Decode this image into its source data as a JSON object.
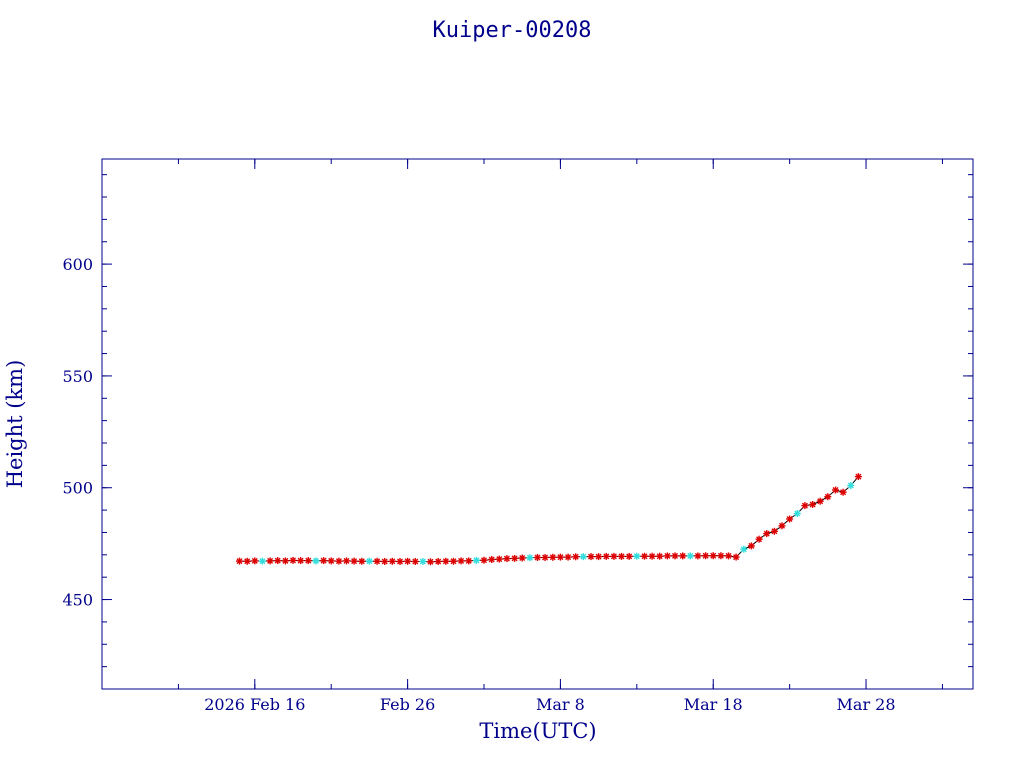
{
  "chart_data": {
    "type": "scatter",
    "title": "Kuiper-00208",
    "xlabel": "Time(UTC)",
    "ylabel": "Height (km)",
    "x_ticks": [
      "2026 Feb 16",
      "Feb 26",
      "Mar  8",
      "Mar 18",
      "Mar 28"
    ],
    "y_ticks": [
      "450",
      "500",
      "550",
      "600"
    ],
    "xlim": [
      "2026-02-06",
      "2026-04-04"
    ],
    "ylim": [
      410,
      647
    ],
    "x_tick_values": [
      "2026-02-16",
      "2026-02-26",
      "2026-03-08",
      "2026-03-18",
      "2026-03-28"
    ],
    "y_tick_values": [
      450,
      500,
      550,
      600
    ],
    "grid": false,
    "series": [
      {
        "marker": "asterisk",
        "line": true,
        "points": [
          [
            "2026-02-15",
            467.2
          ],
          [
            "2026-02-15T12:00",
            467.1
          ],
          [
            "2026-02-16",
            467.3
          ],
          [
            "2026-02-16T12:00",
            467.2
          ],
          [
            "2026-02-17",
            467.3
          ],
          [
            "2026-02-17T12:00",
            467.4
          ],
          [
            "2026-02-18",
            467.3
          ],
          [
            "2026-02-18T12:00",
            467.5
          ],
          [
            "2026-02-19",
            467.4
          ],
          [
            "2026-02-19T12:00",
            467.4
          ],
          [
            "2026-02-20",
            467.3
          ],
          [
            "2026-02-20T12:00",
            467.4
          ],
          [
            "2026-02-21",
            467.3
          ],
          [
            "2026-02-21T12:00",
            467.2
          ],
          [
            "2026-02-22",
            467.3
          ],
          [
            "2026-02-22T12:00",
            467.2
          ],
          [
            "2026-02-23",
            467.1
          ],
          [
            "2026-02-23T12:00",
            467.2
          ],
          [
            "2026-02-24",
            467.1
          ],
          [
            "2026-02-24T12:00",
            467.0
          ],
          [
            "2026-02-25",
            467.1
          ],
          [
            "2026-02-25T12:00",
            467.0
          ],
          [
            "2026-02-26",
            467.1
          ],
          [
            "2026-02-26T12:00",
            467.0
          ],
          [
            "2026-02-27",
            467.0
          ],
          [
            "2026-02-27T12:00",
            466.9
          ],
          [
            "2026-02-28",
            467.0
          ],
          [
            "2026-02-28T12:00",
            467.1
          ],
          [
            "2026-03-01",
            467.1
          ],
          [
            "2026-03-01T12:00",
            467.3
          ],
          [
            "2026-03-02",
            467.3
          ],
          [
            "2026-03-02T12:00",
            467.5
          ],
          [
            "2026-03-03",
            467.6
          ],
          [
            "2026-03-03T12:00",
            467.9
          ],
          [
            "2026-03-04",
            468.1
          ],
          [
            "2026-03-04T12:00",
            468.3
          ],
          [
            "2026-03-05",
            468.4
          ],
          [
            "2026-03-05T12:00",
            468.6
          ],
          [
            "2026-03-06",
            468.7
          ],
          [
            "2026-03-06T12:00",
            468.8
          ],
          [
            "2026-03-07",
            468.8
          ],
          [
            "2026-03-07T12:00",
            468.9
          ],
          [
            "2026-03-08",
            469.0
          ],
          [
            "2026-03-08T12:00",
            469.0
          ],
          [
            "2026-03-09",
            469.1
          ],
          [
            "2026-03-09T12:00",
            469.2
          ],
          [
            "2026-03-10",
            469.2
          ],
          [
            "2026-03-10T12:00",
            469.2
          ],
          [
            "2026-03-11",
            469.3
          ],
          [
            "2026-03-11T12:00",
            469.3
          ],
          [
            "2026-03-12",
            469.3
          ],
          [
            "2026-03-12T12:00",
            469.3
          ],
          [
            "2026-03-13",
            469.4
          ],
          [
            "2026-03-13T12:00",
            469.4
          ],
          [
            "2026-03-14",
            469.4
          ],
          [
            "2026-03-14T12:00",
            469.4
          ],
          [
            "2026-03-15",
            469.5
          ],
          [
            "2026-03-15T12:00",
            469.5
          ],
          [
            "2026-03-16",
            469.5
          ],
          [
            "2026-03-16T12:00",
            469.5
          ],
          [
            "2026-03-17",
            469.5
          ],
          [
            "2026-03-17T12:00",
            469.6
          ],
          [
            "2026-03-18",
            469.6
          ],
          [
            "2026-03-18T12:00",
            469.6
          ],
          [
            "2026-03-19",
            469.5
          ],
          [
            "2026-03-19T12:00",
            469.0
          ],
          [
            "2026-03-20",
            472.5
          ],
          [
            "2026-03-20T12:00",
            474.0
          ],
          [
            "2026-03-21",
            477.0
          ],
          [
            "2026-03-21T12:00",
            479.5
          ],
          [
            "2026-03-22",
            480.5
          ],
          [
            "2026-03-22T12:00",
            483.0
          ],
          [
            "2026-03-23",
            486.0
          ],
          [
            "2026-03-23T12:00",
            488.5
          ],
          [
            "2026-03-24",
            492.0
          ],
          [
            "2026-03-24T12:00",
            492.5
          ],
          [
            "2026-03-25",
            494.0
          ],
          [
            "2026-03-25T12:00",
            496.0
          ],
          [
            "2026-03-26",
            499.0
          ],
          [
            "2026-03-26T12:00",
            498.0
          ],
          [
            "2026-03-27",
            501.0
          ],
          [
            "2026-03-27T12:00",
            505.0
          ]
        ]
      }
    ],
    "colors": {
      "axes": "#00008b",
      "text": "#00008b",
      "line": "#000000",
      "marker": "#dd0000",
      "marker_alt": "#33dddd"
    }
  }
}
